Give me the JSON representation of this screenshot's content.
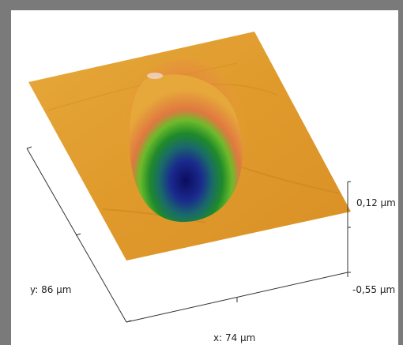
{
  "axes": {
    "x_label": "x: 74 µm",
    "y_label": "y: 86 µm",
    "z_max_label": "0,12 µm",
    "z_min_label": "-0,55 µm"
  },
  "colors": {
    "frame": "#7a7a7a",
    "surface": "#e0a030",
    "crater_rim": "#e06040",
    "crater_mid": "#2f9a2f",
    "crater_bottom": "#14126e"
  }
}
